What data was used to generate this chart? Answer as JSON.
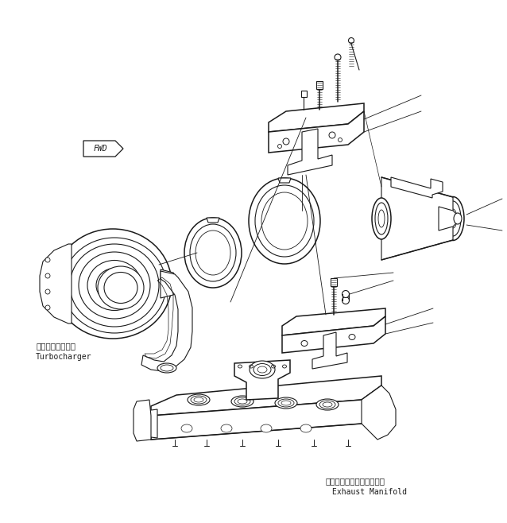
{
  "bg_color": "#ffffff",
  "line_color": "#1a1a1a",
  "lw": 0.8,
  "lw2": 1.1,
  "fig_w": 6.38,
  "fig_h": 6.58,
  "dpi": 100,
  "label_tc_jp": "ターボチャージャ",
  "label_tc_en": "Turbocharger",
  "label_ex_jp": "エキゾーストマニホールド",
  "label_ex_en": "Exhaust Manifold",
  "label_fwd": "FWD"
}
